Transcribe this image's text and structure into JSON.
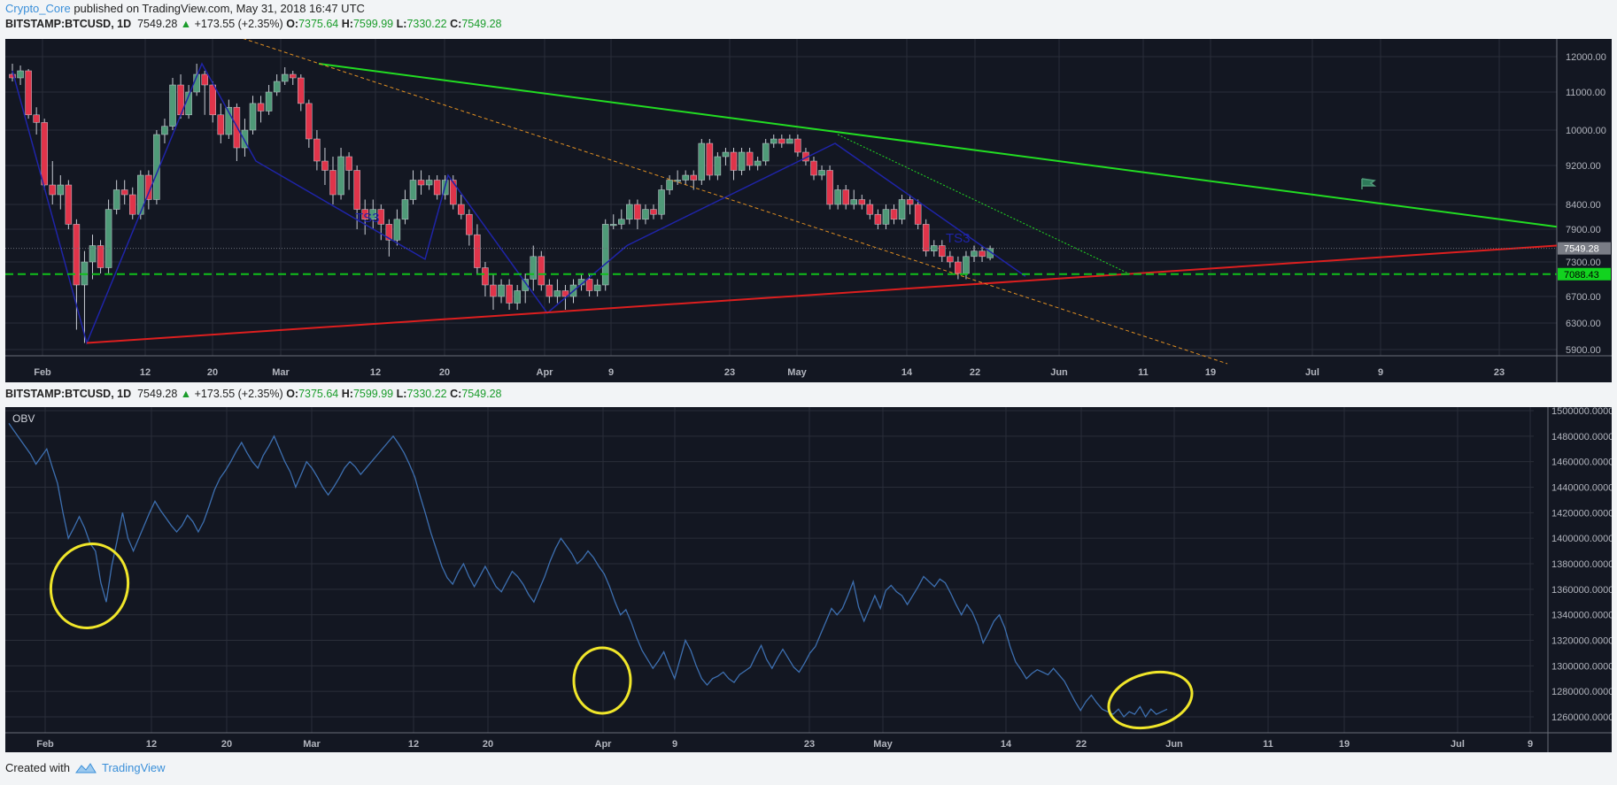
{
  "header": {
    "author": "Crypto_Core",
    "published_text": "published on TradingView.com, May 31, 2018 16:47 UTC"
  },
  "legend": {
    "symbol": "BITSTAMP:BTCUSD, 1D",
    "last": "7549.28",
    "arrow": "▲",
    "change": "+173.55 (+2.35%)",
    "o_label": "O:",
    "o_value": "7375.64",
    "h_label": "H:",
    "h_value": "7599.99",
    "l_label": "L:",
    "l_value": "7330.22",
    "c_label": "C:",
    "c_value": "7549.28"
  },
  "footer": {
    "created_with": "Created with",
    "brand": "TradingView"
  },
  "colors": {
    "up": "#4f9a78",
    "down": "#e0344a",
    "accent_up": "#1a9c2b",
    "green_line": "#22dd22",
    "red_line": "#dd1f1f",
    "orange": "#e08f22",
    "blue_line": "#1f24a8",
    "obv": "#3d6fb0",
    "circle": "#f0e62a",
    "level": "#11c01b"
  },
  "chart_data": [
    {
      "type": "candlestick",
      "title": "BITSTAMP:BTCUSD, 1D",
      "y_ticks": [
        12000,
        11000,
        10000,
        9200,
        8400,
        7900,
        7300,
        6700,
        6300,
        5900
      ],
      "y_tick_labels": [
        "12000.00",
        "11000.00",
        "10000.00",
        "9200.00",
        "8400.00",
        "7900.00",
        "7300.00",
        "6700.00",
        "6300.00",
        "5900.00"
      ],
      "x_tick_labels": [
        "Feb",
        "12",
        "20",
        "Mar",
        "12",
        "20",
        "Apr",
        "9",
        "23",
        "May",
        "14",
        "22",
        "Jun",
        "11",
        "19",
        "Jul",
        "9",
        "23"
      ],
      "price_tags": [
        {
          "label": "7549.28",
          "value": 7549.28
        },
        {
          "label": "7088.43",
          "value": 7088.43
        }
      ],
      "annotations": [
        {
          "text": "TS3"
        },
        {
          "text": "TS3"
        }
      ],
      "lines": [
        {
          "name": "descending-resistance",
          "style": "solid",
          "color": "green"
        },
        {
          "name": "ascending-support",
          "style": "solid",
          "color": "red"
        },
        {
          "name": "long-dashed-trend",
          "style": "dashed",
          "color": "orange"
        },
        {
          "name": "short-dotted-trend",
          "style": "dotted",
          "color": "green"
        },
        {
          "name": "support-level",
          "style": "dashed",
          "value": 7088.43
        }
      ],
      "zigzag": [
        11600,
        6000,
        11800,
        9300,
        7350,
        9000,
        6450,
        7600,
        9700,
        7050
      ],
      "candles": [
        [
          11500,
          11400,
          11800,
          11300
        ],
        [
          11400,
          11600,
          11750,
          11200
        ],
        [
          11600,
          10400,
          11650,
          10300
        ],
        [
          10400,
          10200,
          10600,
          9900
        ],
        [
          10200,
          8800,
          10300,
          8700
        ],
        [
          8800,
          8600,
          9300,
          8400
        ],
        [
          8600,
          8800,
          9000,
          8300
        ],
        [
          8800,
          8000,
          8900,
          7900
        ],
        [
          8000,
          6900,
          8100,
          6200
        ],
        [
          6900,
          7300,
          7500,
          6000
        ],
        [
          7300,
          7600,
          7800,
          7000
        ],
        [
          7600,
          7200,
          7700,
          7100
        ],
        [
          7200,
          8300,
          8500,
          7100
        ],
        [
          8300,
          8700,
          8900,
          8200
        ],
        [
          8700,
          8600,
          8900,
          8400
        ],
        [
          8600,
          8200,
          8750,
          8100
        ],
        [
          8200,
          9000,
          9100,
          8100
        ],
        [
          9000,
          8500,
          9100,
          8300
        ],
        [
          8500,
          9900,
          10000,
          8400
        ],
        [
          9900,
          10100,
          10300,
          9700
        ],
        [
          10100,
          11200,
          11400,
          10000
        ],
        [
          11200,
          10400,
          11500,
          10300
        ],
        [
          10400,
          11000,
          11200,
          10300
        ],
        [
          11000,
          11500,
          11800,
          10900
        ],
        [
          11500,
          11200,
          11600,
          10400
        ],
        [
          11200,
          10400,
          11300,
          10200
        ],
        [
          10400,
          9900,
          10700,
          9700
        ],
        [
          9900,
          10600,
          10800,
          9800
        ],
        [
          10600,
          9600,
          10700,
          9300
        ],
        [
          9600,
          10000,
          10300,
          9400
        ],
        [
          10000,
          10700,
          10900,
          9900
        ],
        [
          10700,
          10500,
          10900,
          10200
        ],
        [
          10500,
          11000,
          11200,
          10400
        ],
        [
          11000,
          11300,
          11500,
          10900
        ],
        [
          11300,
          11500,
          11700,
          11200
        ],
        [
          11500,
          11400,
          11600,
          11200
        ],
        [
          11400,
          10700,
          11500,
          10500
        ],
        [
          10700,
          9800,
          10800,
          9600
        ],
        [
          9800,
          9300,
          10000,
          9100
        ],
        [
          9300,
          9100,
          9600,
          8800
        ],
        [
          9100,
          8600,
          9400,
          8400
        ],
        [
          8600,
          9400,
          9600,
          8500
        ],
        [
          9400,
          9100,
          9500,
          8700
        ],
        [
          9100,
          8300,
          9200,
          7900
        ],
        [
          8300,
          8100,
          8500,
          7800
        ],
        [
          8100,
          8300,
          8500,
          7900
        ],
        [
          8300,
          8000,
          8400,
          7700
        ],
        [
          8000,
          7700,
          8100,
          7400
        ],
        [
          7700,
          8100,
          8300,
          7600
        ],
        [
          8100,
          8500,
          8700,
          8000
        ],
        [
          8500,
          8900,
          9100,
          8400
        ],
        [
          8900,
          8800,
          9100,
          8600
        ],
        [
          8800,
          8900,
          9000,
          8700
        ],
        [
          8900,
          8600,
          9000,
          8500
        ],
        [
          8600,
          8900,
          9000,
          8500
        ],
        [
          8900,
          8400,
          9000,
          8300
        ],
        [
          8400,
          8200,
          8600,
          8100
        ],
        [
          8200,
          7800,
          8300,
          7600
        ],
        [
          7800,
          7200,
          8000,
          7100
        ],
        [
          7200,
          6900,
          7300,
          6700
        ],
        [
          6900,
          6700,
          7100,
          6500
        ],
        [
          6700,
          6900,
          7000,
          6600
        ],
        [
          6900,
          6600,
          7000,
          6500
        ],
        [
          6600,
          6800,
          6900,
          6500
        ],
        [
          6800,
          7000,
          7100,
          6600
        ],
        [
          7000,
          7400,
          7600,
          6800
        ],
        [
          7400,
          6900,
          7500,
          6800
        ],
        [
          6900,
          6700,
          7000,
          6600
        ],
        [
          6700,
          6800,
          7000,
          6600
        ],
        [
          6800,
          6700,
          6900,
          6500
        ],
        [
          6700,
          6900,
          7000,
          6600
        ],
        [
          6900,
          7000,
          7100,
          6800
        ],
        [
          7000,
          6800,
          7100,
          6700
        ],
        [
          6800,
          6900,
          7000,
          6700
        ],
        [
          6900,
          8000,
          8100,
          6800
        ],
        [
          8000,
          8000,
          8200,
          7900
        ],
        [
          8000,
          8100,
          8300,
          7900
        ],
        [
          8100,
          8400,
          8500,
          8000
        ],
        [
          8400,
          8100,
          8500,
          7900
        ],
        [
          8100,
          8300,
          8400,
          8000
        ],
        [
          8300,
          8200,
          8400,
          8100
        ],
        [
          8200,
          8700,
          8800,
          8100
        ],
        [
          8700,
          8900,
          9000,
          8600
        ],
        [
          8900,
          8900,
          9100,
          8800
        ],
        [
          8900,
          9000,
          9100,
          8800
        ],
        [
          9000,
          8900,
          9100,
          8700
        ],
        [
          8900,
          9700,
          9800,
          8800
        ],
        [
          9700,
          9000,
          9800,
          8900
        ],
        [
          9000,
          9400,
          9500,
          8900
        ],
        [
          9400,
          9500,
          9600,
          9200
        ],
        [
          9500,
          9100,
          9600,
          8900
        ],
        [
          9100,
          9500,
          9600,
          9000
        ],
        [
          9500,
          9200,
          9600,
          9100
        ],
        [
          9200,
          9300,
          9400,
          9100
        ],
        [
          9300,
          9700,
          9800,
          9200
        ],
        [
          9700,
          9800,
          9900,
          9600
        ],
        [
          9800,
          9700,
          9900,
          9600
        ],
        [
          9700,
          9800,
          9900,
          9700
        ],
        [
          9800,
          9500,
          9900,
          9400
        ],
        [
          9500,
          9300,
          9600,
          9200
        ],
        [
          9300,
          9000,
          9400,
          8900
        ],
        [
          9000,
          9100,
          9200,
          8900
        ],
        [
          9100,
          8400,
          9200,
          8300
        ],
        [
          8400,
          8700,
          8800,
          8300
        ],
        [
          8700,
          8400,
          8800,
          8300
        ],
        [
          8400,
          8500,
          8700,
          8300
        ],
        [
          8500,
          8400,
          8600,
          8300
        ],
        [
          8400,
          8200,
          8500,
          8100
        ],
        [
          8200,
          8000,
          8300,
          7900
        ],
        [
          8000,
          8300,
          8400,
          7900
        ],
        [
          8300,
          8100,
          8400,
          8000
        ],
        [
          8100,
          8500,
          8600,
          8000
        ],
        [
          8500,
          8400,
          8600,
          8200
        ],
        [
          8400,
          8000,
          8500,
          7900
        ],
        [
          8000,
          7500,
          8100,
          7400
        ],
        [
          7500,
          7600,
          7700,
          7400
        ],
        [
          7600,
          7400,
          7700,
          7300
        ],
        [
          7400,
          7300,
          7500,
          7200
        ],
        [
          7300,
          7100,
          7400,
          7000
        ],
        [
          7100,
          7400,
          7500,
          7000
        ],
        [
          7400,
          7500,
          7600,
          7300
        ],
        [
          7500,
          7400,
          7600,
          7300
        ],
        [
          7376,
          7549,
          7600,
          7330
        ]
      ]
    },
    {
      "type": "line",
      "title": "OBV",
      "y_ticks": [
        1500000,
        1480000,
        1460000,
        1440000,
        1420000,
        1400000,
        1380000,
        1360000,
        1340000,
        1320000,
        1300000,
        1280000,
        1260000
      ],
      "y_tick_labels": [
        "1500000.0000",
        "1480000.0000",
        "1460000.0000",
        "1440000.0000",
        "1420000.0000",
        "1400000.0000",
        "1380000.0000",
        "1360000.0000",
        "1340000.0000",
        "1320000.0000",
        "1300000.0000",
        "1280000.0000",
        "1260000.0000"
      ],
      "x_tick_labels": [
        "Feb",
        "12",
        "20",
        "Mar",
        "12",
        "20",
        "Apr",
        "9",
        "23",
        "May",
        "14",
        "22",
        "Jun",
        "11",
        "19",
        "Jul",
        "9"
      ],
      "values": [
        1490000,
        1484000,
        1478000,
        1472000,
        1466000,
        1458000,
        1464000,
        1470000,
        1456000,
        1443000,
        1420000,
        1400000,
        1408000,
        1417000,
        1408000,
        1396000,
        1390000,
        1365000,
        1350000,
        1378000,
        1398000,
        1420000,
        1400000,
        1390000,
        1400000,
        1410000,
        1420000,
        1429000,
        1422000,
        1416000,
        1410000,
        1405000,
        1410000,
        1418000,
        1413000,
        1405000,
        1413000,
        1425000,
        1438000,
        1447000,
        1453000,
        1460000,
        1468000,
        1475000,
        1467000,
        1460000,
        1455000,
        1465000,
        1472000,
        1480000,
        1470000,
        1460000,
        1452000,
        1440000,
        1450000,
        1460000,
        1455000,
        1448000,
        1440000,
        1434000,
        1440000,
        1447000,
        1455000,
        1460000,
        1456000,
        1450000,
        1455000,
        1460000,
        1465000,
        1470000,
        1475000,
        1480000,
        1474000,
        1467000,
        1458000,
        1448000,
        1433000,
        1419000,
        1404000,
        1391000,
        1378000,
        1369000,
        1364000,
        1373000,
        1380000,
        1370000,
        1362000,
        1370000,
        1378000,
        1370000,
        1362000,
        1358000,
        1366000,
        1374000,
        1370000,
        1364000,
        1356000,
        1350000,
        1360000,
        1370000,
        1382000,
        1392000,
        1400000,
        1394000,
        1388000,
        1380000,
        1384000,
        1390000,
        1385000,
        1378000,
        1372000,
        1362000,
        1350000,
        1340000,
        1344000,
        1334000,
        1322000,
        1312000,
        1305000,
        1298000,
        1304000,
        1311000,
        1300000,
        1290000,
        1305000,
        1320000,
        1312000,
        1300000,
        1290000,
        1285000,
        1290000,
        1292000,
        1295000,
        1290000,
        1287000,
        1293000,
        1296000,
        1299000,
        1308000,
        1316000,
        1305000,
        1298000,
        1306000,
        1313000,
        1306000,
        1299000,
        1295000,
        1302000,
        1310000,
        1315000,
        1325000,
        1335000,
        1345000,
        1340000,
        1345000,
        1355000,
        1366000,
        1346000,
        1335000,
        1345000,
        1355000,
        1345000,
        1359000,
        1363000,
        1358000,
        1355000,
        1348000,
        1355000,
        1362000,
        1370000,
        1366000,
        1362000,
        1368000,
        1365000,
        1357000,
        1348000,
        1340000,
        1348000,
        1342000,
        1332000,
        1318000,
        1326000,
        1335000,
        1340000,
        1330000,
        1315000,
        1303000,
        1297000,
        1290000,
        1294000,
        1297000,
        1295000,
        1293000,
        1298000,
        1293000,
        1288000,
        1280000,
        1272000,
        1265000,
        1272000,
        1277000,
        1271000,
        1266000,
        1264000,
        1262000,
        1266000,
        1260000,
        1264000,
        1262000,
        1268000,
        1260000,
        1266000,
        1262000,
        1264000,
        1266000
      ],
      "highlights": [
        "circle-feb",
        "circle-apr",
        "circle-late-may"
      ]
    }
  ]
}
